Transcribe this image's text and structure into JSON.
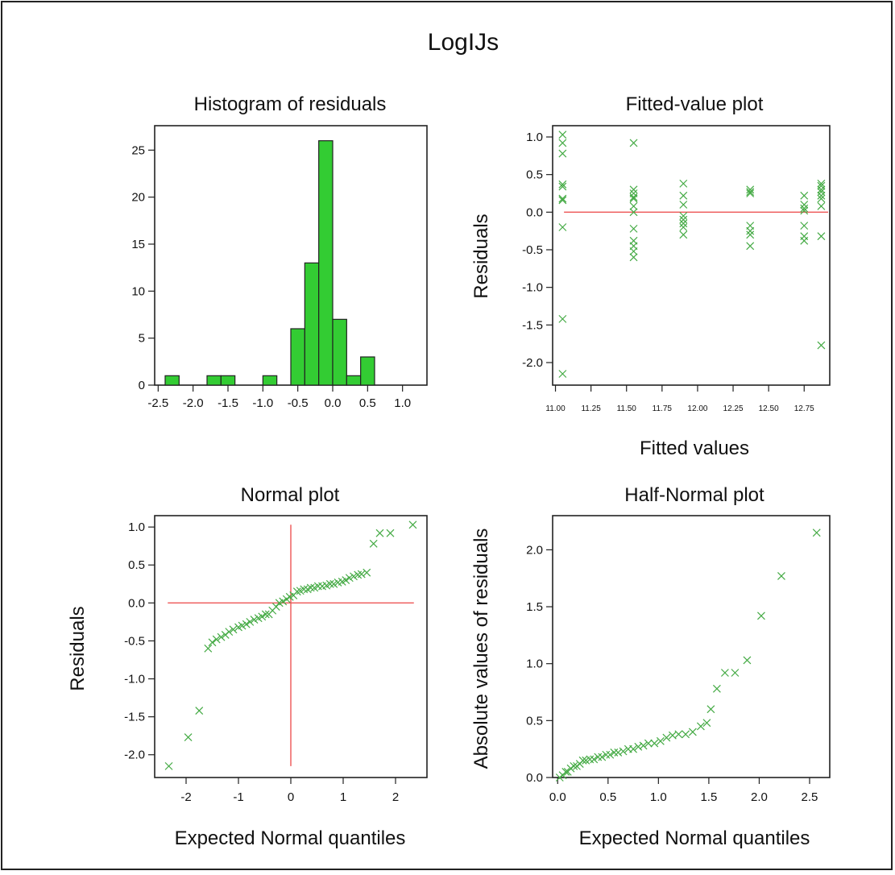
{
  "figure_title": "LogIJs",
  "chart_data": [
    {
      "id": "hist",
      "type": "bar",
      "title": "Histogram of residuals",
      "xlabel": "",
      "ylabel": "",
      "xlim": [
        -2.55,
        1.35
      ],
      "ylim": [
        0,
        27.6
      ],
      "xticks": [
        "-2.5",
        "-2.0",
        "-1.5",
        "-1.0",
        "-0.5",
        "0.0",
        "0.5",
        "1.0"
      ],
      "yticks": [
        "0",
        "5",
        "10",
        "15",
        "20",
        "25"
      ],
      "bin_width": 0.2,
      "bins": [
        {
          "start": -2.4,
          "count": 1
        },
        {
          "start": -2.2,
          "count": 0
        },
        {
          "start": -2.0,
          "count": 0
        },
        {
          "start": -1.8,
          "count": 1
        },
        {
          "start": -1.6,
          "count": 1
        },
        {
          "start": -1.4,
          "count": 0
        },
        {
          "start": -1.2,
          "count": 0
        },
        {
          "start": -1.0,
          "count": 1
        },
        {
          "start": -0.8,
          "count": 0
        },
        {
          "start": -0.6,
          "count": 6
        },
        {
          "start": -0.4,
          "count": 13
        },
        {
          "start": -0.2,
          "count": 26
        },
        {
          "start": 0.0,
          "count": 7
        },
        {
          "start": 0.2,
          "count": 1
        },
        {
          "start": 0.4,
          "count": 3
        }
      ],
      "bar_color": "#33cc33"
    },
    {
      "id": "fitted",
      "type": "scatter",
      "title": "Fitted-value plot",
      "xlabel": "Fitted values",
      "ylabel": "Residuals",
      "xlim": [
        10.98,
        12.93
      ],
      "ylim": [
        -2.3,
        1.15
      ],
      "xticks": [
        "11.00",
        "11.25",
        "11.50",
        "11.75",
        "12.00",
        "12.25",
        "12.50",
        "12.75"
      ],
      "yticks": [
        "-2.0",
        "-1.5",
        "-1.0",
        "-0.5",
        "0.0",
        "0.5",
        "1.0"
      ],
      "reference_line_y": 0,
      "points": [
        [
          11.05,
          1.03
        ],
        [
          11.05,
          0.92
        ],
        [
          11.05,
          0.78
        ],
        [
          11.05,
          0.37
        ],
        [
          11.05,
          0.34
        ],
        [
          11.05,
          0.18
        ],
        [
          11.05,
          0.16
        ],
        [
          11.05,
          -0.2
        ],
        [
          11.05,
          -1.42
        ],
        [
          11.05,
          -2.15
        ],
        [
          11.55,
          0.92
        ],
        [
          11.55,
          0.3
        ],
        [
          11.55,
          0.25
        ],
        [
          11.55,
          0.2
        ],
        [
          11.55,
          0.18
        ],
        [
          11.55,
          0.08
        ],
        [
          11.55,
          0.0
        ],
        [
          11.55,
          -0.22
        ],
        [
          11.55,
          -0.38
        ],
        [
          11.55,
          -0.45
        ],
        [
          11.55,
          -0.52
        ],
        [
          11.55,
          -0.6
        ],
        [
          11.9,
          0.38
        ],
        [
          11.9,
          0.22
        ],
        [
          11.9,
          0.1
        ],
        [
          11.9,
          -0.05
        ],
        [
          11.9,
          -0.1
        ],
        [
          11.9,
          -0.15
        ],
        [
          11.9,
          -0.2
        ],
        [
          11.9,
          -0.3
        ],
        [
          12.37,
          0.3
        ],
        [
          12.37,
          0.27
        ],
        [
          12.37,
          0.25
        ],
        [
          12.37,
          -0.18
        ],
        [
          12.37,
          -0.25
        ],
        [
          12.37,
          -0.3
        ],
        [
          12.37,
          -0.45
        ],
        [
          12.75,
          0.22
        ],
        [
          12.75,
          0.1
        ],
        [
          12.75,
          0.05
        ],
        [
          12.75,
          0.02
        ],
        [
          12.75,
          -0.18
        ],
        [
          12.75,
          -0.32
        ],
        [
          12.75,
          -0.38
        ],
        [
          12.87,
          0.38
        ],
        [
          12.87,
          0.35
        ],
        [
          12.87,
          0.3
        ],
        [
          12.87,
          0.27
        ],
        [
          12.87,
          0.22
        ],
        [
          12.87,
          0.18
        ],
        [
          12.87,
          0.08
        ],
        [
          12.87,
          -0.32
        ],
        [
          12.87,
          -1.77
        ]
      ],
      "marker_color": "#44aa44",
      "line_color": "#ee5555"
    },
    {
      "id": "normal",
      "type": "scatter",
      "title": "Normal plot",
      "xlabel": "Expected Normal quantiles",
      "ylabel": "Residuals",
      "xlim": [
        -2.6,
        2.6
      ],
      "ylim": [
        -2.3,
        1.15
      ],
      "xticks": [
        "-2",
        "-1",
        "0",
        "1",
        "2"
      ],
      "yticks": [
        "-2.0",
        "-1.5",
        "-1.0",
        "-0.5",
        "0.0",
        "0.5",
        "1.0"
      ],
      "reference_line_y": 0,
      "reference_line_x": 0,
      "points": [
        [
          -2.33,
          -2.15
        ],
        [
          -1.96,
          -1.77
        ],
        [
          -1.75,
          -1.42
        ],
        [
          -1.58,
          -0.6
        ],
        [
          -1.5,
          -0.52
        ],
        [
          -1.42,
          -0.48
        ],
        [
          -1.33,
          -0.45
        ],
        [
          -1.25,
          -0.42
        ],
        [
          -1.18,
          -0.38
        ],
        [
          -1.1,
          -0.35
        ],
        [
          -1.0,
          -0.32
        ],
        [
          -0.93,
          -0.3
        ],
        [
          -0.85,
          -0.28
        ],
        [
          -0.78,
          -0.25
        ],
        [
          -0.7,
          -0.22
        ],
        [
          -0.62,
          -0.2
        ],
        [
          -0.55,
          -0.18
        ],
        [
          -0.48,
          -0.15
        ],
        [
          -0.42,
          -0.15
        ],
        [
          -0.35,
          -0.1
        ],
        [
          -0.28,
          -0.05
        ],
        [
          -0.22,
          0.0
        ],
        [
          -0.15,
          0.02
        ],
        [
          -0.08,
          0.05
        ],
        [
          -0.02,
          0.08
        ],
        [
          0.05,
          0.1
        ],
        [
          0.12,
          0.15
        ],
        [
          0.18,
          0.16
        ],
        [
          0.25,
          0.18
        ],
        [
          0.32,
          0.18
        ],
        [
          0.38,
          0.2
        ],
        [
          0.45,
          0.2
        ],
        [
          0.52,
          0.22
        ],
        [
          0.6,
          0.22
        ],
        [
          0.68,
          0.23
        ],
        [
          0.75,
          0.25
        ],
        [
          0.82,
          0.25
        ],
        [
          0.9,
          0.27
        ],
        [
          0.98,
          0.28
        ],
        [
          1.05,
          0.3
        ],
        [
          1.12,
          0.33
        ],
        [
          1.2,
          0.35
        ],
        [
          1.28,
          0.37
        ],
        [
          1.35,
          0.38
        ],
        [
          1.45,
          0.4
        ],
        [
          1.58,
          0.78
        ],
        [
          1.7,
          0.92
        ],
        [
          1.9,
          0.92
        ],
        [
          2.33,
          1.03
        ]
      ],
      "marker_color": "#44aa44",
      "line_color": "#ee5555"
    },
    {
      "id": "halfnormal",
      "type": "scatter",
      "title": "Half-Normal plot",
      "xlabel": "Expected Normal quantiles",
      "ylabel": "Absolute values of residuals",
      "xlim": [
        -0.05,
        2.7
      ],
      "ylim": [
        0,
        2.3
      ],
      "xticks": [
        "0.0",
        "0.5",
        "1.0",
        "1.5",
        "2.0",
        "2.5"
      ],
      "yticks": [
        "0.0",
        "0.5",
        "1.0",
        "1.5",
        "2.0"
      ],
      "points": [
        [
          0.02,
          0.0
        ],
        [
          0.05,
          0.02
        ],
        [
          0.08,
          0.05
        ],
        [
          0.1,
          0.05
        ],
        [
          0.13,
          0.08
        ],
        [
          0.16,
          0.1
        ],
        [
          0.19,
          0.1
        ],
        [
          0.22,
          0.12
        ],
        [
          0.25,
          0.15
        ],
        [
          0.28,
          0.15
        ],
        [
          0.32,
          0.16
        ],
        [
          0.36,
          0.16
        ],
        [
          0.4,
          0.18
        ],
        [
          0.44,
          0.18
        ],
        [
          0.48,
          0.2
        ],
        [
          0.52,
          0.2
        ],
        [
          0.56,
          0.22
        ],
        [
          0.6,
          0.22
        ],
        [
          0.65,
          0.23
        ],
        [
          0.7,
          0.25
        ],
        [
          0.75,
          0.25
        ],
        [
          0.8,
          0.27
        ],
        [
          0.85,
          0.28
        ],
        [
          0.9,
          0.3
        ],
        [
          0.96,
          0.3
        ],
        [
          1.02,
          0.32
        ],
        [
          1.08,
          0.35
        ],
        [
          1.14,
          0.37
        ],
        [
          1.2,
          0.38
        ],
        [
          1.27,
          0.38
        ],
        [
          1.34,
          0.4
        ],
        [
          1.42,
          0.45
        ],
        [
          1.48,
          0.48
        ],
        [
          1.52,
          0.6
        ],
        [
          1.58,
          0.78
        ],
        [
          1.66,
          0.92
        ],
        [
          1.76,
          0.92
        ],
        [
          1.88,
          1.03
        ],
        [
          2.02,
          1.42
        ],
        [
          2.22,
          1.77
        ],
        [
          2.57,
          2.15
        ]
      ],
      "marker_color": "#44aa44"
    }
  ]
}
